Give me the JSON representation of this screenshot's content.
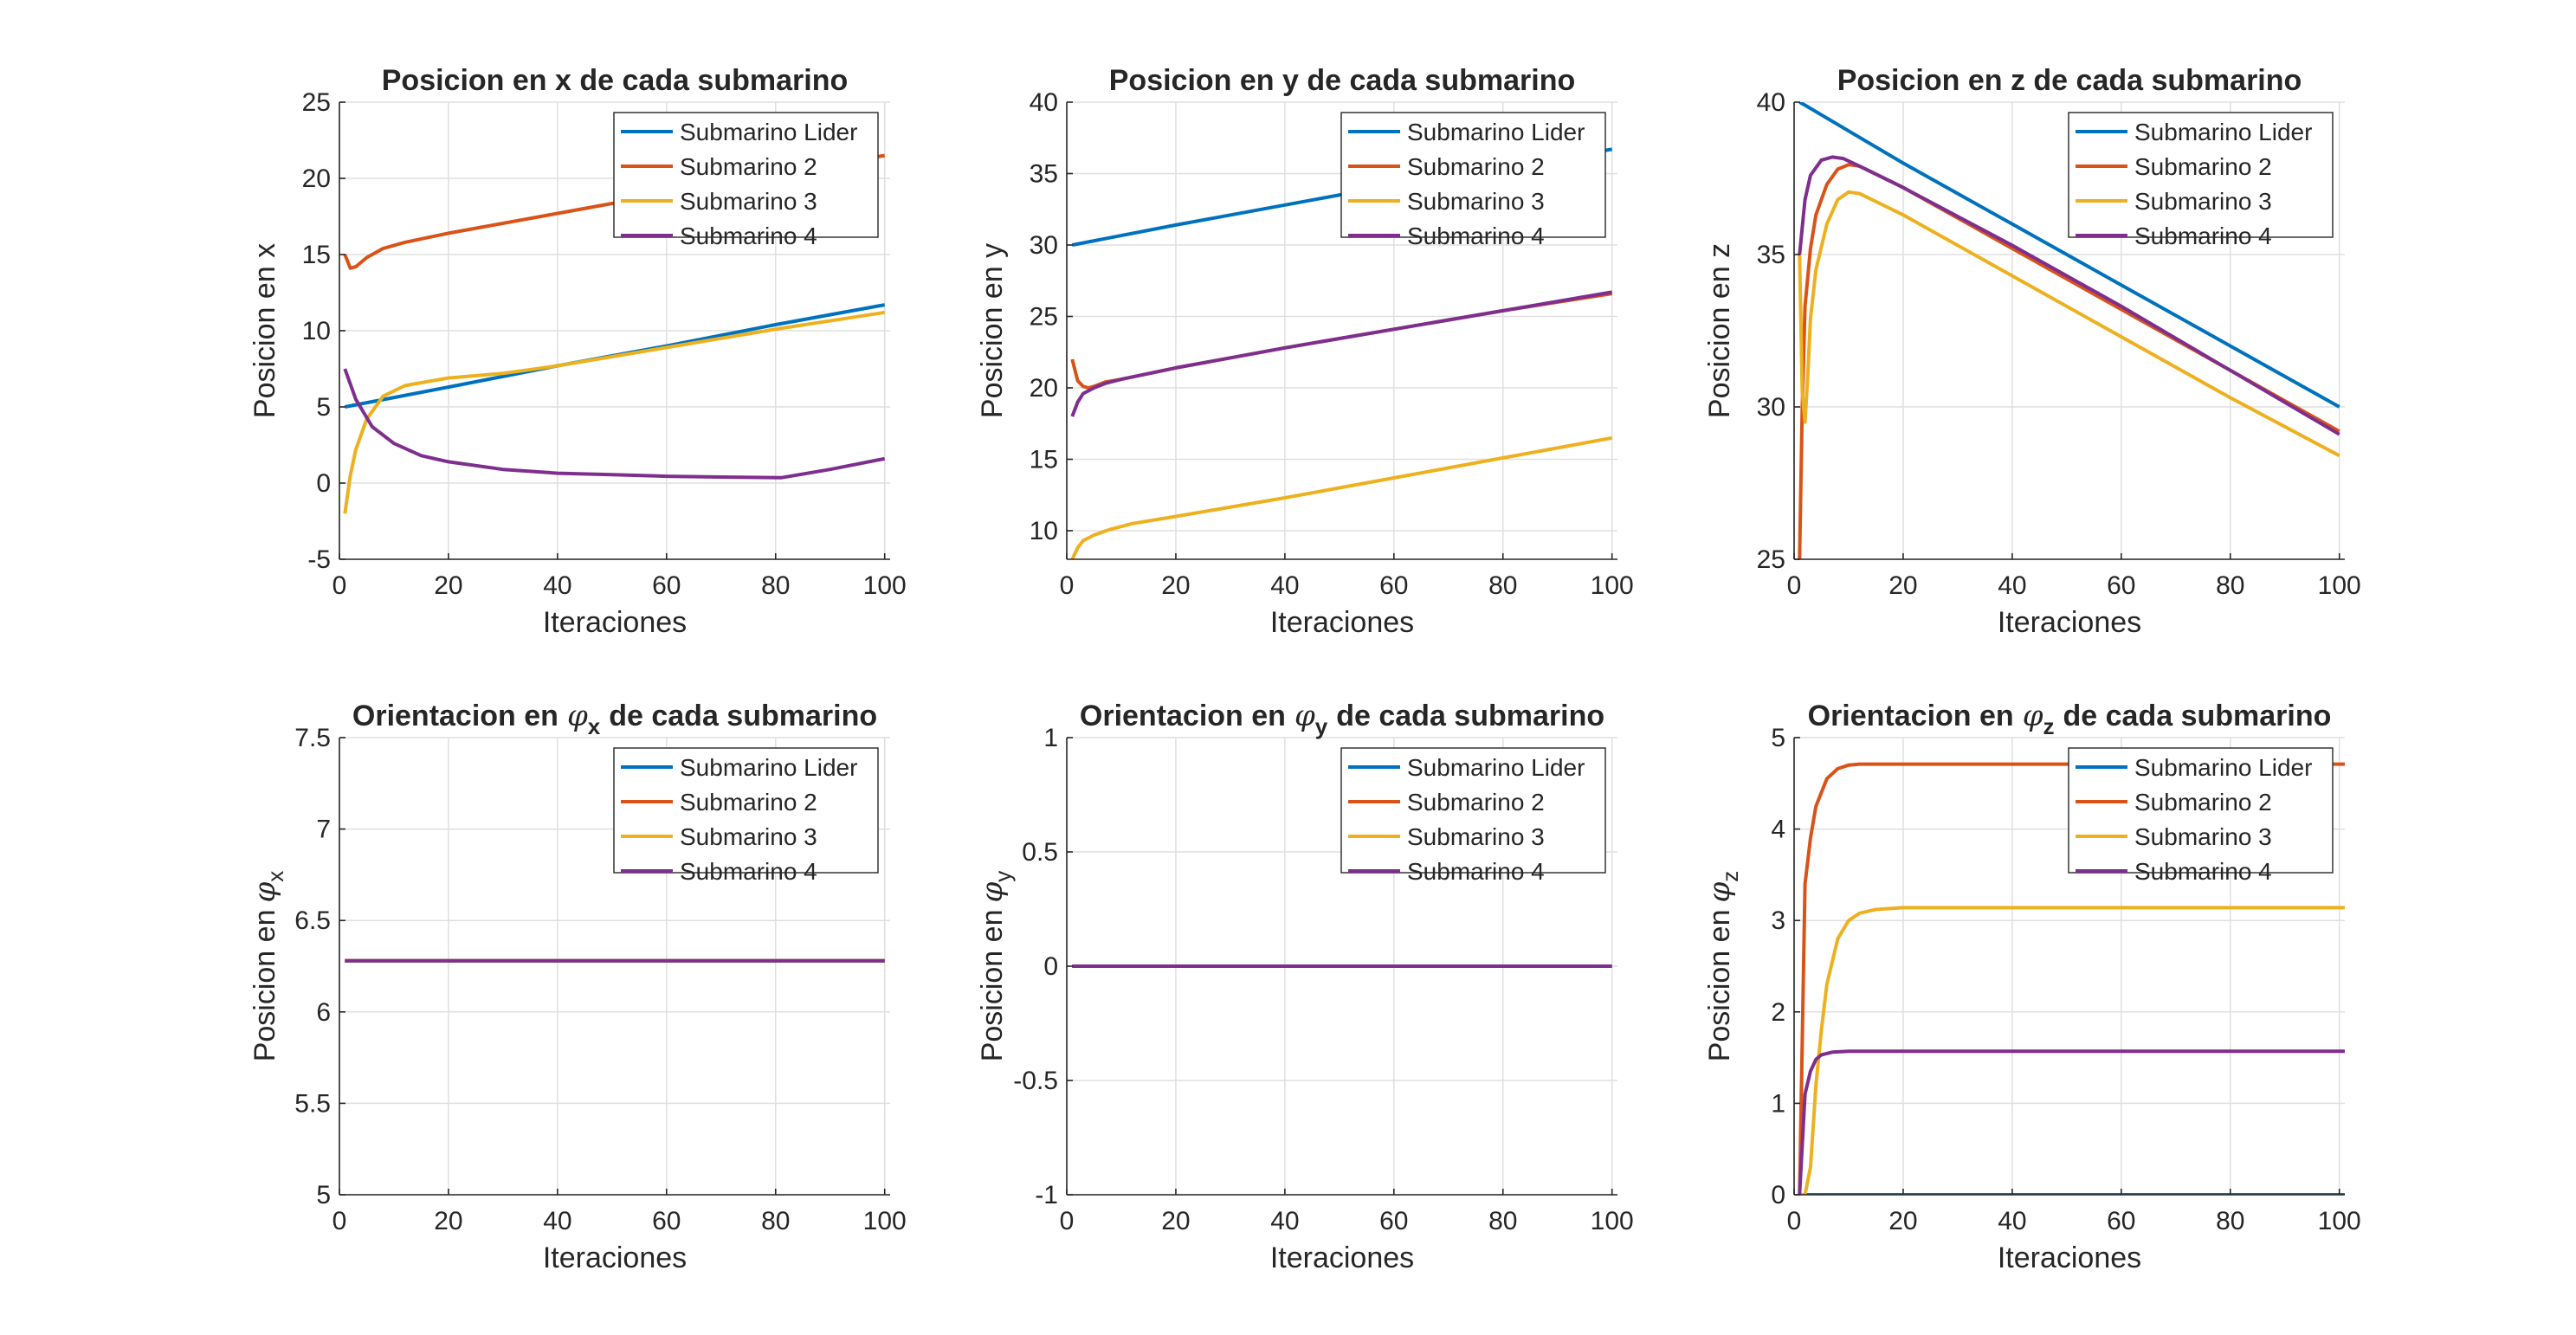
{
  "colors": {
    "Submarino Lider": "#0072BD",
    "Submarino 2": "#D95319",
    "Submarino 3": "#EDB120",
    "Submarino 4": "#7E2F8E",
    "axis": "#262626",
    "grid": "#dfdfdf"
  },
  "chart_data": [
    {
      "type": "line",
      "title": "Posicion en x de cada submarino",
      "xlabel": "Iteraciones",
      "ylabel": "Posicion en x",
      "xlim": [
        0,
        101
      ],
      "ylim": [
        -5,
        25
      ],
      "xticks": [
        0,
        20,
        40,
        60,
        80,
        100
      ],
      "yticks": [
        -5,
        0,
        5,
        10,
        15,
        20,
        25
      ],
      "grid": true,
      "legend": "top-right",
      "series": [
        {
          "name": "Submarino Lider",
          "x": [
            1,
            20,
            40,
            60,
            80,
            100
          ],
          "y": [
            5,
            6.3,
            7.7,
            9.0,
            10.4,
            11.7
          ]
        },
        {
          "name": "Submarino 2",
          "x": [
            1,
            2,
            3,
            5,
            8,
            12,
            20,
            40,
            60,
            80,
            100
          ],
          "y": [
            15,
            14.1,
            14.2,
            14.8,
            15.4,
            15.8,
            16.4,
            17.7,
            19.0,
            20.3,
            21.5
          ]
        },
        {
          "name": "Submarino 3",
          "x": [
            1,
            2,
            3,
            5,
            8,
            12,
            20,
            30,
            40,
            60,
            80,
            100
          ],
          "y": [
            -2,
            0.5,
            2.2,
            4.2,
            5.7,
            6.4,
            6.9,
            7.2,
            7.7,
            8.9,
            10.1,
            11.2
          ]
        },
        {
          "name": "Submarino 4",
          "x": [
            1,
            3,
            6,
            10,
            15,
            20,
            30,
            40,
            50,
            60,
            70,
            81,
            90,
            100
          ],
          "y": [
            7.5,
            5.5,
            3.7,
            2.6,
            1.8,
            1.4,
            0.9,
            0.65,
            0.55,
            0.45,
            0.4,
            0.35,
            0.9,
            1.6
          ]
        }
      ]
    },
    {
      "type": "line",
      "title": "Posicion en y de cada submarino",
      "xlabel": "Iteraciones",
      "ylabel": "Posicion en y",
      "xlim": [
        0,
        101
      ],
      "ylim": [
        8,
        40
      ],
      "xticks": [
        0,
        20,
        40,
        60,
        80,
        100
      ],
      "yticks": [
        10,
        15,
        20,
        25,
        30,
        35,
        40
      ],
      "grid": true,
      "legend": "top-right",
      "series": [
        {
          "name": "Submarino Lider",
          "x": [
            1,
            20,
            40,
            60,
            80,
            100
          ],
          "y": [
            30,
            31.4,
            32.8,
            34.2,
            35.4,
            36.7
          ]
        },
        {
          "name": "Submarino 2",
          "x": [
            1,
            2,
            3,
            4,
            5,
            7,
            10,
            20,
            40,
            60,
            80,
            100
          ],
          "y": [
            22,
            20.5,
            20.1,
            20.0,
            20.1,
            20.4,
            20.6,
            21.4,
            22.8,
            24.1,
            25.4,
            26.6
          ]
        },
        {
          "name": "Submarino 3",
          "x": [
            1,
            2,
            3,
            5,
            8,
            12,
            20,
            40,
            60,
            80,
            100
          ],
          "y": [
            8,
            8.8,
            9.3,
            9.7,
            10.1,
            10.5,
            11.0,
            12.3,
            13.7,
            15.1,
            16.5
          ]
        },
        {
          "name": "Submarino 4",
          "x": [
            1,
            2,
            3,
            5,
            7,
            10,
            20,
            40,
            60,
            80,
            100
          ],
          "y": [
            18,
            19.0,
            19.6,
            20.0,
            20.3,
            20.6,
            21.4,
            22.8,
            24.1,
            25.4,
            26.7
          ]
        }
      ]
    },
    {
      "type": "line",
      "title": "Posicion en z de cada submarino",
      "xlabel": "Iteraciones",
      "ylabel": "Posicion en z",
      "xlim": [
        0,
        101
      ],
      "ylim": [
        25,
        40
      ],
      "xticks": [
        0,
        20,
        40,
        60,
        80,
        100
      ],
      "yticks": [
        25,
        30,
        35,
        40
      ],
      "grid": true,
      "legend": "top-right",
      "series": [
        {
          "name": "Submarino Lider",
          "x": [
            1,
            2,
            20,
            40,
            60,
            80,
            100
          ],
          "y": [
            40,
            39.9,
            38.0,
            36.0,
            34.0,
            32.0,
            30.0
          ]
        },
        {
          "name": "Submarino 2",
          "x": [
            1,
            1.5,
            2,
            3,
            4,
            6,
            8,
            10,
            12,
            20,
            40,
            60,
            80,
            100
          ],
          "y": [
            25,
            30.0,
            33.3,
            35.2,
            36.3,
            37.3,
            37.8,
            37.95,
            37.9,
            37.2,
            35.2,
            33.2,
            31.2,
            29.2
          ]
        },
        {
          "name": "Submarino 3",
          "x": [
            1,
            1.5,
            2,
            2.5,
            3,
            4,
            6,
            8,
            10,
            12,
            20,
            40,
            60,
            80,
            100
          ],
          "y": [
            35,
            30.5,
            29.5,
            31.0,
            32.9,
            34.5,
            36.0,
            36.8,
            37.05,
            37.0,
            36.3,
            34.3,
            32.3,
            30.3,
            28.4
          ]
        },
        {
          "name": "Submarino 4",
          "x": [
            1,
            2,
            3,
            5,
            7,
            9,
            12,
            20,
            40,
            60,
            80,
            100
          ],
          "y": [
            35,
            36.8,
            37.6,
            38.1,
            38.2,
            38.15,
            37.9,
            37.2,
            35.3,
            33.3,
            31.2,
            29.1
          ]
        }
      ]
    },
    {
      "type": "line",
      "title": "Orientacion en",
      "title_symbol": "φ",
      "title_sub": "x",
      "title_tail": "de cada submarino",
      "xlabel": "Iteraciones",
      "ylabel": "Posicion en",
      "ylabel_symbol": "φ",
      "ylabel_sub": "x",
      "xlim": [
        0,
        101
      ],
      "ylim": [
        5,
        7.5
      ],
      "xticks": [
        0,
        20,
        40,
        60,
        80,
        100
      ],
      "yticks": [
        5,
        5.5,
        6,
        6.5,
        7,
        7.5
      ],
      "grid": true,
      "legend": "top-right",
      "series": [
        {
          "name": "Submarino Lider",
          "x": [
            1,
            100
          ],
          "y": [
            6.28,
            6.28
          ]
        },
        {
          "name": "Submarino 2",
          "x": [
            1,
            100
          ],
          "y": [
            6.28,
            6.28
          ]
        },
        {
          "name": "Submarino 3",
          "x": [
            1,
            100
          ],
          "y": [
            6.28,
            6.28
          ]
        },
        {
          "name": "Submarino 4",
          "x": [
            1,
            100
          ],
          "y": [
            6.28,
            6.28
          ]
        }
      ]
    },
    {
      "type": "line",
      "title": "Orientacion en",
      "title_symbol": "φ",
      "title_sub": "y",
      "title_tail": "de cada submarino",
      "xlabel": "Iteraciones",
      "ylabel": "Posicion en",
      "ylabel_symbol": "φ",
      "ylabel_sub": "y",
      "xlim": [
        0,
        101
      ],
      "ylim": [
        -1,
        1
      ],
      "xticks": [
        0,
        20,
        40,
        60,
        80,
        100
      ],
      "yticks": [
        -1,
        -0.5,
        0,
        0.5,
        1
      ],
      "grid": true,
      "legend": "top-right",
      "series": [
        {
          "name": "Submarino Lider",
          "x": [
            1,
            100
          ],
          "y": [
            0,
            0
          ]
        },
        {
          "name": "Submarino 2",
          "x": [
            1,
            100
          ],
          "y": [
            0,
            0
          ]
        },
        {
          "name": "Submarino 3",
          "x": [
            1,
            100
          ],
          "y": [
            0,
            0
          ]
        },
        {
          "name": "Submarino 4",
          "x": [
            1,
            100
          ],
          "y": [
            0,
            0
          ]
        }
      ]
    },
    {
      "type": "line",
      "title": "Orientacion en",
      "title_symbol": "φ",
      "title_sub": "z",
      "title_tail": "de cada submarino",
      "xlabel": "Iteraciones",
      "ylabel": "Posicion en",
      "ylabel_symbol": "φ",
      "ylabel_sub": "z",
      "xlim": [
        0,
        101
      ],
      "ylim": [
        0,
        5
      ],
      "xticks": [
        0,
        20,
        40,
        60,
        80,
        100
      ],
      "yticks": [
        0,
        1,
        2,
        3,
        4,
        5
      ],
      "grid": true,
      "legend": "top-right",
      "series": [
        {
          "name": "Submarino Lider",
          "x": [
            1,
            101
          ],
          "y": [
            0,
            0
          ]
        },
        {
          "name": "Submarino 2",
          "x": [
            1,
            2,
            3,
            4,
            6,
            8,
            10,
            12,
            15,
            20,
            30,
            101
          ],
          "y": [
            0,
            3.4,
            3.9,
            4.25,
            4.55,
            4.66,
            4.7,
            4.71,
            4.71,
            4.71,
            4.71,
            4.71
          ]
        },
        {
          "name": "Submarino 3",
          "x": [
            1,
            2,
            3,
            4,
            5,
            6,
            8,
            10,
            12,
            15,
            20,
            30,
            101
          ],
          "y": [
            0,
            0,
            0.3,
            1.2,
            1.8,
            2.3,
            2.8,
            3.0,
            3.08,
            3.12,
            3.14,
            3.14,
            3.14
          ]
        },
        {
          "name": "Submarino 4",
          "x": [
            1,
            2,
            3,
            4,
            5,
            7,
            10,
            15,
            20,
            101
          ],
          "y": [
            0,
            1.1,
            1.35,
            1.48,
            1.53,
            1.56,
            1.57,
            1.57,
            1.57,
            1.57
          ]
        }
      ]
    }
  ]
}
